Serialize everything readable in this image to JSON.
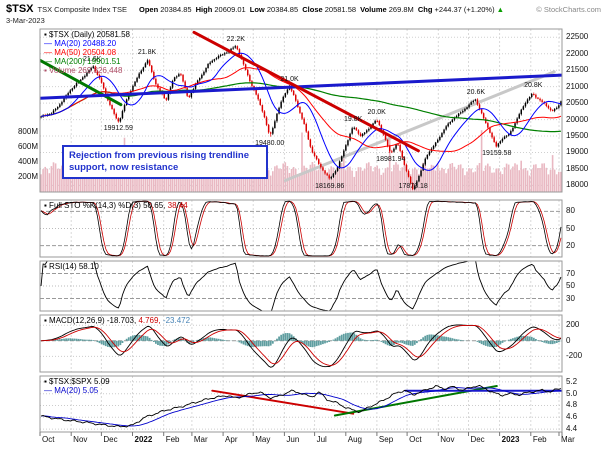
{
  "header": {
    "symbol": "$TSX",
    "name": "TSX Composite Index TSE",
    "date": "3-Mar-2023",
    "quote_items": [
      [
        "Open",
        "20384.85"
      ],
      [
        "High",
        "20609.01"
      ],
      [
        "Low",
        "20384.85"
      ],
      [
        "Close",
        "20581.58"
      ],
      [
        "Volume",
        "269.8M"
      ],
      [
        "Chg",
        "+244.37 (+1.20%)"
      ]
    ],
    "quote_arrow": "▲",
    "copyright": "© StockCharts.com"
  },
  "xaxis": {
    "labels": [
      {
        "t": "Oct"
      },
      {
        "t": "Nov"
      },
      {
        "t": "Dec"
      },
      {
        "t": "2022",
        "b": 1
      },
      {
        "t": "Feb"
      },
      {
        "t": "Mar"
      },
      {
        "t": "Apr"
      },
      {
        "t": "May"
      },
      {
        "t": "Jun"
      },
      {
        "t": "Jul"
      },
      {
        "t": "Aug"
      },
      {
        "t": "Sep"
      },
      {
        "t": "Oct"
      },
      {
        "t": "Nov"
      },
      {
        "t": "Dec"
      },
      {
        "t": "2023",
        "b": 1
      },
      {
        "t": "Feb"
      },
      {
        "t": "Mar"
      }
    ]
  },
  "chart_data": [
    {
      "panel": "price",
      "type": "candlestick",
      "symbol": "$TSX",
      "timeframe": "Daily",
      "last_close": 20581.58,
      "ylim": [
        17800,
        22750
      ],
      "yticks": [
        22500,
        22000,
        21500,
        21000,
        20500,
        20000,
        19500,
        19000,
        18500,
        18000
      ],
      "colors": {
        "up": "#000000",
        "down": "#dd0000"
      },
      "legend_rows": [
        [
          [
            "▪ $TSX (Daily) 20581.58",
            "#000000"
          ]
        ],
        [
          [
            "— MA(20) 20488.20",
            "#0000ff"
          ]
        ],
        [
          [
            "— MA(50) 20504.08",
            "#ff0000"
          ]
        ],
        [
          [
            "— MA(200) 19901.51",
            "#008000"
          ]
        ],
        [
          [
            "▪ Volume 269,826,448",
            "#b05068"
          ]
        ]
      ],
      "volume": {
        "last": "269,826,448",
        "color": "#e9b8c2",
        "yticks": [
          [
            "800M",
            800
          ],
          [
            "600M",
            600
          ],
          [
            "400M",
            400
          ],
          [
            "200M",
            200
          ]
        ]
      },
      "price_keypoints": [
        [
          0.0,
          20080
        ],
        [
          0.02,
          20180
        ],
        [
          0.058,
          20900
        ],
        [
          0.08,
          21300
        ],
        [
          0.1,
          21600
        ],
        [
          0.117,
          21100
        ],
        [
          0.132,
          20480
        ],
        [
          0.145,
          19990
        ],
        [
          0.15,
          19912.59
        ],
        [
          0.163,
          20550
        ],
        [
          0.175,
          21000
        ],
        [
          0.193,
          21480
        ],
        [
          0.205,
          21800
        ],
        [
          0.222,
          21050
        ],
        [
          0.24,
          20550
        ],
        [
          0.255,
          21250
        ],
        [
          0.268,
          21450
        ],
        [
          0.283,
          20600
        ],
        [
          0.3,
          21150
        ],
        [
          0.32,
          21650
        ],
        [
          0.34,
          21900
        ],
        [
          0.36,
          22100
        ],
        [
          0.375,
          22213
        ],
        [
          0.39,
          21650
        ],
        [
          0.403,
          21150
        ],
        [
          0.415,
          20700
        ],
        [
          0.428,
          20150
        ],
        [
          0.44,
          19480
        ],
        [
          0.455,
          20250
        ],
        [
          0.468,
          20750
        ],
        [
          0.478,
          21000
        ],
        [
          0.49,
          20600
        ],
        [
          0.505,
          19900
        ],
        [
          0.52,
          19050
        ],
        [
          0.535,
          18650
        ],
        [
          0.545,
          18420
        ],
        [
          0.555,
          18169.86
        ],
        [
          0.57,
          18520
        ],
        [
          0.585,
          19200
        ],
        [
          0.6,
          19780
        ],
        [
          0.615,
          19480
        ],
        [
          0.63,
          19740
        ],
        [
          0.645,
          19990
        ],
        [
          0.658,
          19560
        ],
        [
          0.672,
          18981.94
        ],
        [
          0.685,
          19320
        ],
        [
          0.7,
          18560
        ],
        [
          0.715,
          17873.18
        ],
        [
          0.728,
          18350
        ],
        [
          0.742,
          18900
        ],
        [
          0.758,
          19260
        ],
        [
          0.775,
          19720
        ],
        [
          0.79,
          19960
        ],
        [
          0.805,
          20190
        ],
        [
          0.82,
          20420
        ],
        [
          0.835,
          20600
        ],
        [
          0.85,
          20080
        ],
        [
          0.862,
          19700
        ],
        [
          0.875,
          19159.58
        ],
        [
          0.888,
          19420
        ],
        [
          0.9,
          19560
        ],
        [
          0.915,
          20010
        ],
        [
          0.93,
          20460
        ],
        [
          0.945,
          20800
        ],
        [
          0.957,
          20640
        ],
        [
          0.97,
          20430
        ],
        [
          0.982,
          20240
        ],
        [
          0.992,
          20360
        ],
        [
          1.0,
          20581.58
        ]
      ],
      "annotations": [
        {
          "x": 0.1,
          "v": 21600,
          "text": "21.6K",
          "pos": "above"
        },
        {
          "x": 0.15,
          "v": 19912.59,
          "text": "19912.59",
          "pos": "below"
        },
        {
          "x": 0.205,
          "v": 21800,
          "text": "21.8K",
          "pos": "above"
        },
        {
          "x": 0.375,
          "v": 22213,
          "text": "22.2K",
          "pos": "above"
        },
        {
          "x": 0.44,
          "v": 19480.0,
          "text": "19480.00",
          "pos": "below"
        },
        {
          "x": 0.478,
          "v": 21000,
          "text": "21.0K",
          "pos": "above"
        },
        {
          "x": 0.555,
          "v": 18169.86,
          "text": "18169.86",
          "pos": "below"
        },
        {
          "x": 0.6,
          "v": 19780,
          "text": "19.8K",
          "pos": "above"
        },
        {
          "x": 0.645,
          "v": 19990,
          "text": "20.0K",
          "pos": "above"
        },
        {
          "x": 0.672,
          "v": 18981.94,
          "text": "18981.94",
          "pos": "below"
        },
        {
          "x": 0.715,
          "v": 17873.18,
          "text": "17873.18",
          "pos": "below"
        },
        {
          "x": 0.835,
          "v": 20600,
          "text": "20.6K",
          "pos": "above"
        },
        {
          "x": 0.875,
          "v": 19159.58,
          "text": "19159.58",
          "pos": "below"
        },
        {
          "x": 0.945,
          "v": 20800,
          "text": "20.8K",
          "pos": "above"
        }
      ],
      "trendlines": [
        {
          "from": [
            0.47,
            18150
          ],
          "to": [
            0.985,
            21450
          ],
          "color": "#c8c8c8",
          "width": 3,
          "z": 0
        },
        {
          "from": [
            0.0,
            21800
          ],
          "to": [
            0.155,
            20450
          ],
          "color": "#007700",
          "width": 3,
          "z": 1
        },
        {
          "from": [
            0.0,
            20650
          ],
          "to": [
            1.0,
            21350
          ],
          "color": "#1a1acc",
          "width": 3,
          "z": 1
        },
        {
          "from": [
            0.295,
            22650
          ],
          "to": [
            0.725,
            19050
          ],
          "color": "#cc0000",
          "width": 3,
          "z": 1
        }
      ],
      "callout": {
        "text": "Rejection from previous rising trendline support, now resistance",
        "color": "#2233cc"
      }
    },
    {
      "panel": "sto",
      "type": "line",
      "label": "Full STO %K(14,3) %D(3)",
      "last_k": 50.65,
      "last_d": 38.44,
      "ylim": [
        0,
        100
      ],
      "yticks": [
        80,
        50,
        20
      ],
      "bands": [
        80,
        20
      ],
      "mid": 50,
      "colors": {
        "k": "#000000",
        "d": "#cc0000"
      },
      "legend_rows": [
        [
          [
            "▪ Full STO %K(14,3) %D(3) ",
            "#000000"
          ],
          [
            "50.65, ",
            "#000000"
          ],
          [
            "38.44",
            "#cc0000"
          ]
        ]
      ]
    },
    {
      "panel": "rsi",
      "type": "line",
      "label": "RSI(14)",
      "last": 58.1,
      "ylim": [
        10,
        90
      ],
      "yticks": [
        70,
        50,
        30
      ],
      "bands": [
        70,
        30
      ],
      "mid": 50,
      "colors": {
        "line": "#000000"
      },
      "legend_rows": [
        [
          [
            "▪ RSI(14) 58.10",
            "#000000"
          ]
        ]
      ]
    },
    {
      "panel": "macd",
      "type": "line+histogram",
      "label": "MACD(12,26,9)",
      "last_macd": -18.703,
      "last_signal": 4.769,
      "last_hist": -23.472,
      "ylim": [
        -400,
        330
      ],
      "yticks": [
        200,
        0,
        -200
      ],
      "colors": {
        "macd": "#000000",
        "signal": "#cc0000",
        "hist": "#5f9ea0"
      },
      "legend_rows": [
        [
          [
            "▪ MACD(12,26,9) ",
            "#000000"
          ],
          [
            "-18.703, ",
            "#000000"
          ],
          [
            "4.769, ",
            "#cc0000"
          ],
          [
            "-23.472",
            "#4682b4"
          ]
        ]
      ]
    },
    {
      "panel": "ratio",
      "type": "line",
      "label": "$TSX:$SPX",
      "last": 5.09,
      "ma20_last": 5.05,
      "ylim": [
        4.35,
        5.3
      ],
      "yticks": [
        5.2,
        5.0,
        4.8,
        4.6,
        4.4
      ],
      "colors": {
        "line": "#000000",
        "ma": "#0000cc"
      },
      "legend_rows": [
        [
          [
            "▪ $TSX:$SPX 5.09",
            "#000000"
          ]
        ],
        [
          [
            "— MA(20) 5.05",
            "#0000cc"
          ]
        ]
      ],
      "ratio_keypoints": [
        [
          0.0,
          4.62
        ],
        [
          0.04,
          4.56
        ],
        [
          0.08,
          4.52
        ],
        [
          0.12,
          4.47
        ],
        [
          0.15,
          4.44
        ],
        [
          0.175,
          4.46
        ],
        [
          0.2,
          4.6
        ],
        [
          0.24,
          4.72
        ],
        [
          0.27,
          4.78
        ],
        [
          0.3,
          4.86
        ],
        [
          0.33,
          4.93
        ],
        [
          0.36,
          4.97
        ],
        [
          0.375,
          4.92
        ],
        [
          0.4,
          4.99
        ],
        [
          0.42,
          5.03
        ],
        [
          0.44,
          4.93
        ],
        [
          0.46,
          4.96
        ],
        [
          0.48,
          5.05
        ],
        [
          0.5,
          5.01
        ],
        [
          0.52,
          4.94
        ],
        [
          0.535,
          5.03
        ],
        [
          0.55,
          4.9
        ],
        [
          0.57,
          4.84
        ],
        [
          0.585,
          4.77
        ],
        [
          0.6,
          4.72
        ],
        [
          0.615,
          4.69
        ],
        [
          0.63,
          4.77
        ],
        [
          0.65,
          4.85
        ],
        [
          0.665,
          4.92
        ],
        [
          0.68,
          5.0
        ],
        [
          0.7,
          5.06
        ],
        [
          0.715,
          4.98
        ],
        [
          0.73,
          5.03
        ],
        [
          0.745,
          5.08
        ],
        [
          0.76,
          5.13
        ],
        [
          0.775,
          5.08
        ],
        [
          0.79,
          5.12
        ],
        [
          0.81,
          5.06
        ],
        [
          0.825,
          5.1
        ],
        [
          0.84,
          5.14
        ],
        [
          0.855,
          5.08
        ],
        [
          0.87,
          5.02
        ],
        [
          0.885,
          4.97
        ],
        [
          0.9,
          5.0
        ],
        [
          0.92,
          4.98
        ],
        [
          0.935,
          5.02
        ],
        [
          0.95,
          5.04
        ],
        [
          0.965,
          5.06
        ],
        [
          0.98,
          5.03
        ],
        [
          0.99,
          5.07
        ],
        [
          1.0,
          5.09
        ]
      ],
      "trendlines": [
        {
          "from": [
            0.33,
            5.05
          ],
          "to": [
            0.6,
            4.66
          ],
          "color": "#cc0000",
          "width": 2,
          "z": 1
        },
        {
          "from": [
            0.565,
            4.63
          ],
          "to": [
            0.875,
            5.13
          ],
          "color": "#007700",
          "width": 2,
          "z": 1
        },
        {
          "from": [
            0.7,
            5.05
          ],
          "to": [
            1.0,
            5.05
          ],
          "color": "#1a1acc",
          "width": 2,
          "z": 1
        }
      ]
    }
  ]
}
